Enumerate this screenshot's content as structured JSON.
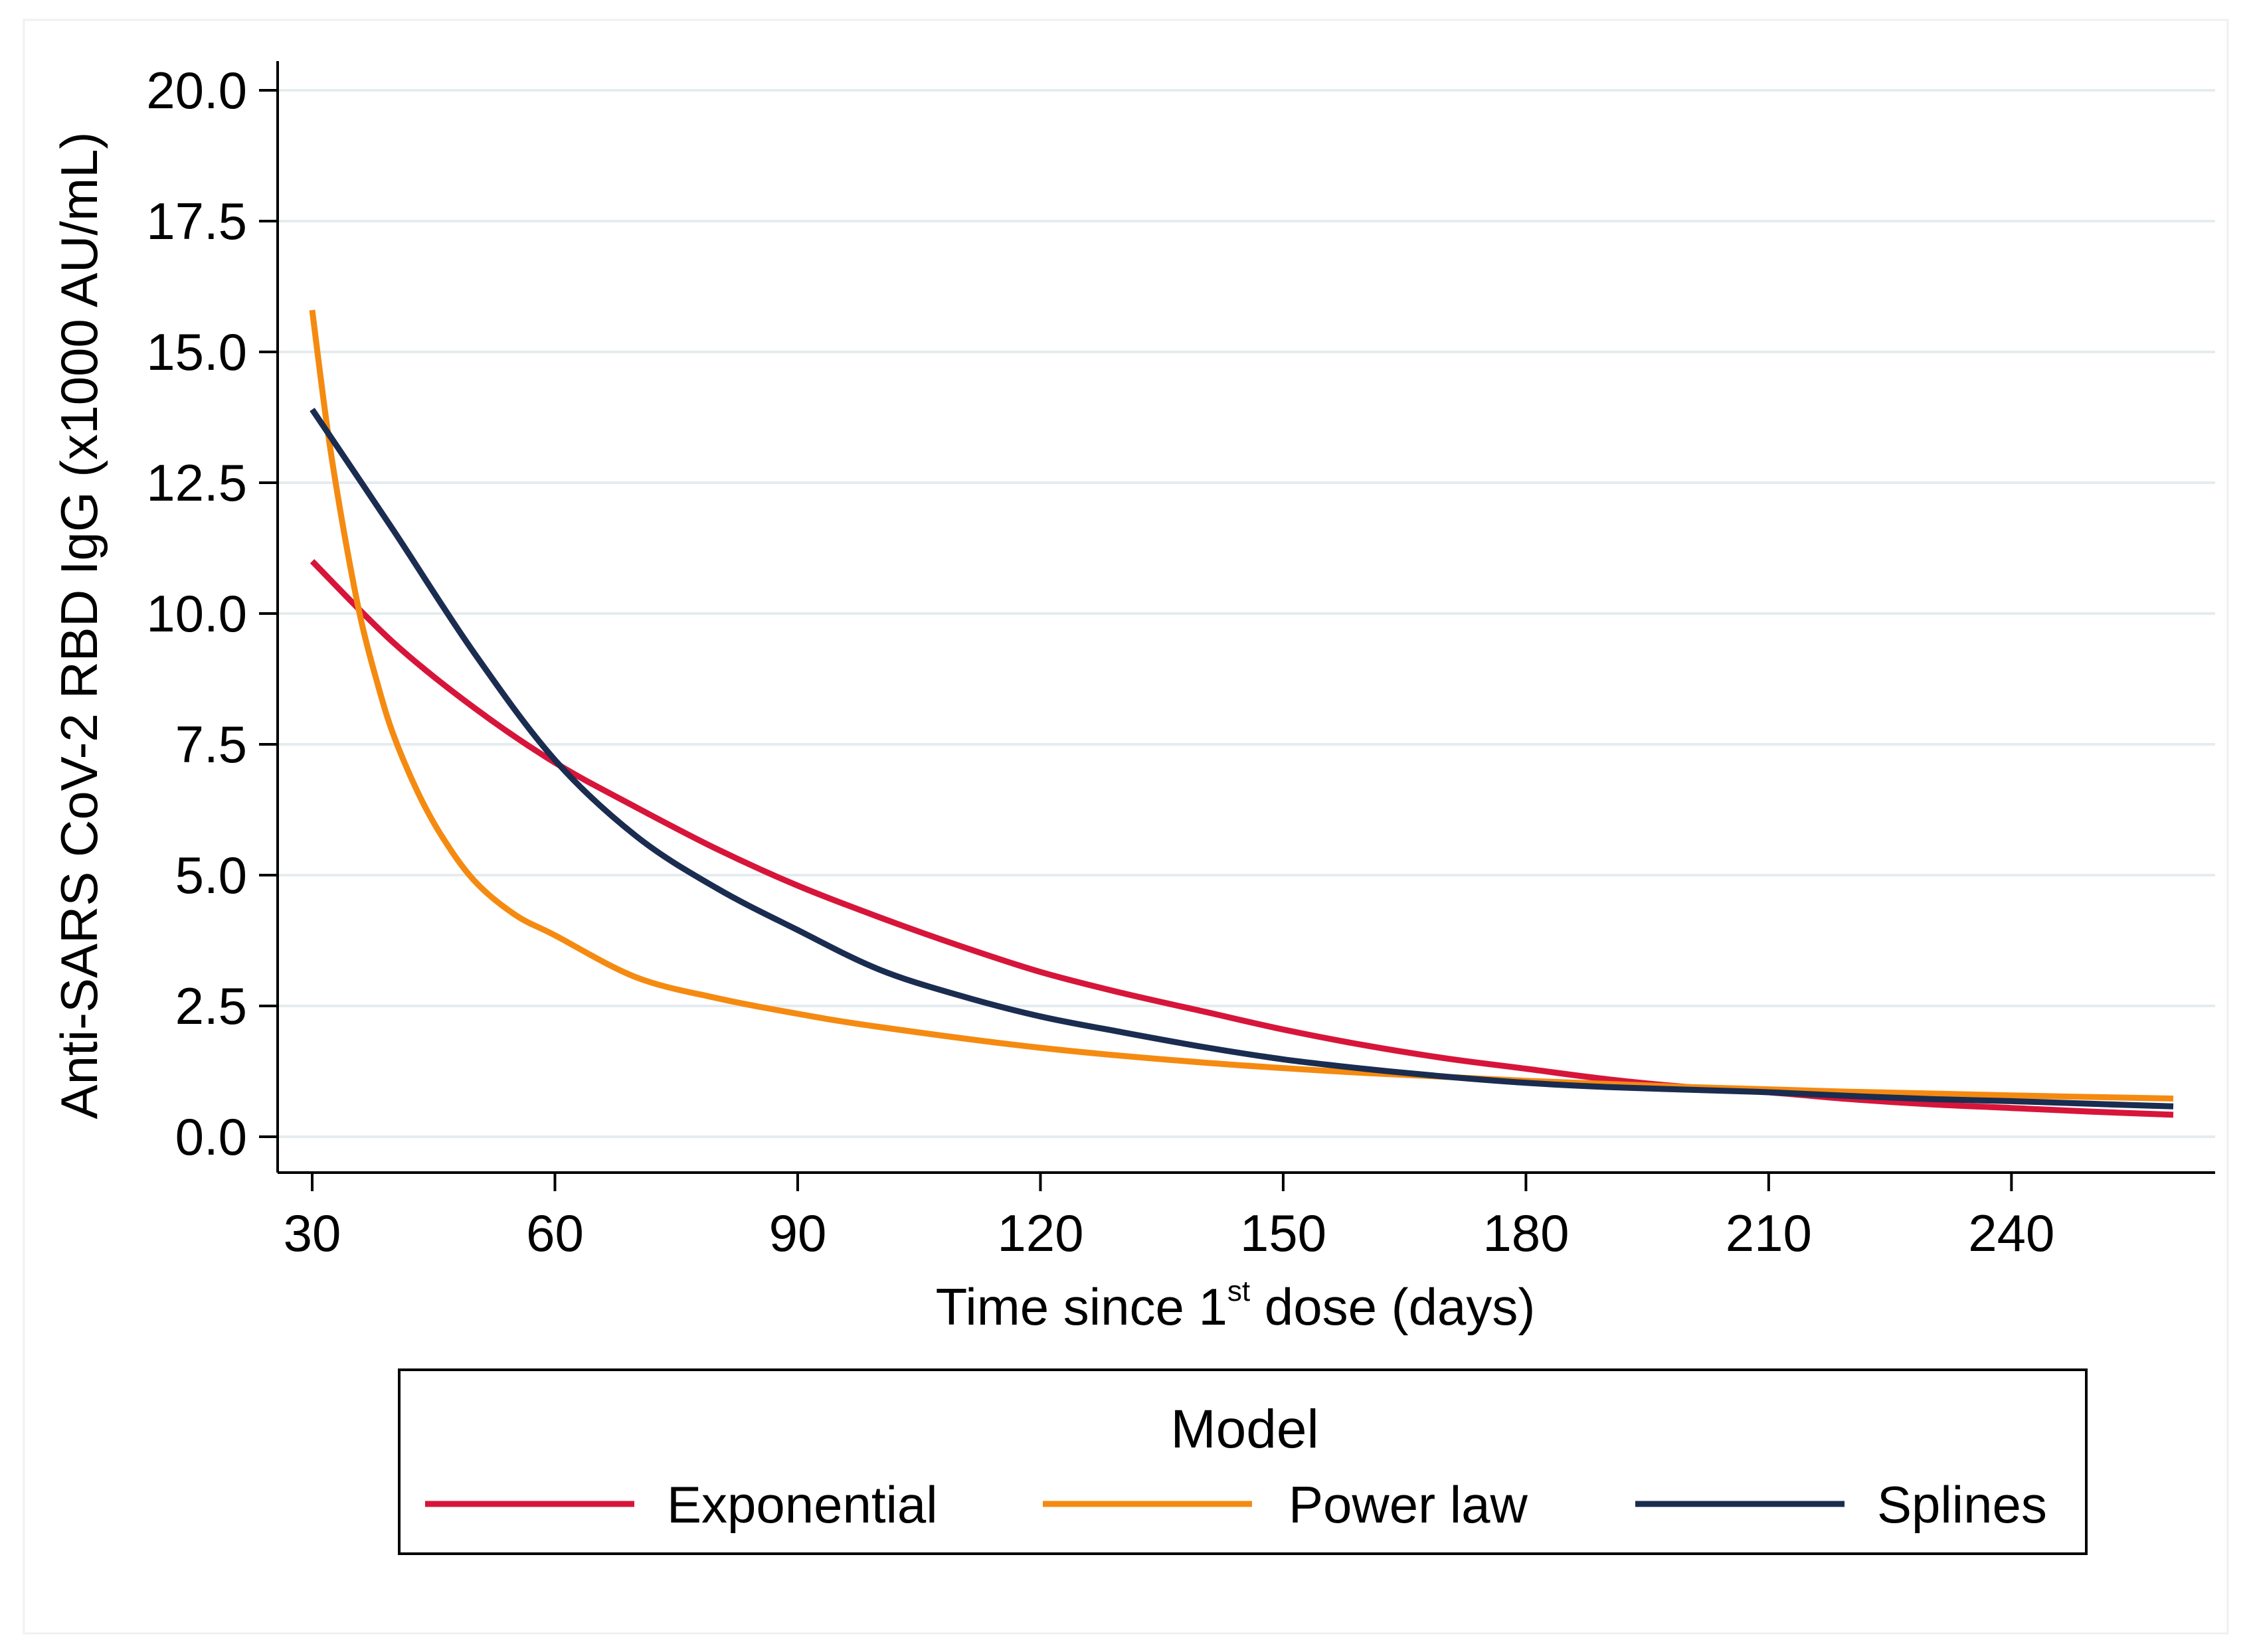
{
  "chart_data": {
    "type": "line",
    "title": "",
    "xlabel": {
      "prefix": "Time since 1",
      "superscript": "st",
      "suffix": " dose (days)"
    },
    "ylabel": "Anti-SARS CoV-2 RBD IgG (x1000 AU/mL)",
    "xlim": [
      30,
      260
    ],
    "ylim": [
      0,
      20
    ],
    "x_ticks": [
      30,
      60,
      90,
      120,
      150,
      180,
      210,
      240
    ],
    "x_tick_labels": [
      "30",
      "60",
      "90",
      "120",
      "150",
      "180",
      "210",
      "240"
    ],
    "y_ticks": [
      0,
      2.5,
      5,
      7.5,
      10,
      12.5,
      15,
      17.5,
      20
    ],
    "y_tick_labels": [
      "0.0",
      "2.5",
      "5.0",
      "7.5",
      "10.0",
      "12.5",
      "15.0",
      "17.5",
      "20.0"
    ],
    "grid": "horizontal",
    "legend": {
      "title": "Model",
      "placement": "bottom"
    },
    "series": [
      {
        "name": "Exponential",
        "color": "#d7153a",
        "x": [
          30,
          40,
          50,
          60,
          70,
          80,
          90,
          100,
          110,
          120,
          130,
          140,
          150,
          160,
          170,
          180,
          190,
          200,
          210,
          220,
          230,
          240,
          250,
          260
        ],
        "y": [
          11.0,
          9.45,
          8.2,
          7.15,
          6.3,
          5.5,
          4.8,
          4.2,
          3.65,
          3.15,
          2.75,
          2.4,
          2.05,
          1.75,
          1.5,
          1.3,
          1.1,
          0.95,
          0.85,
          0.72,
          0.62,
          0.55,
          0.48,
          0.42
        ]
      },
      {
        "name": "Power law",
        "color": "#f58a11",
        "x": [
          30,
          32,
          34,
          36,
          38,
          40,
          43,
          46,
          50,
          55,
          60,
          70,
          80,
          90,
          100,
          120,
          140,
          160,
          180,
          200,
          220,
          240,
          260
        ],
        "y": [
          15.8,
          13.4,
          11.5,
          9.9,
          8.7,
          7.7,
          6.6,
          5.75,
          4.9,
          4.25,
          3.85,
          3.05,
          2.65,
          2.35,
          2.1,
          1.7,
          1.42,
          1.22,
          1.07,
          0.95,
          0.86,
          0.79,
          0.73
        ]
      },
      {
        "name": "Splines",
        "color": "#1a2c50",
        "x": [
          30,
          40,
          50,
          60,
          70,
          80,
          90,
          100,
          110,
          120,
          130,
          140,
          150,
          160,
          170,
          180,
          190,
          200,
          210,
          220,
          230,
          240,
          250,
          260
        ],
        "y": [
          13.9,
          11.6,
          9.25,
          7.2,
          5.75,
          4.75,
          3.95,
          3.2,
          2.7,
          2.3,
          2.0,
          1.72,
          1.48,
          1.3,
          1.15,
          1.03,
          0.95,
          0.9,
          0.85,
          0.78,
          0.72,
          0.68,
          0.63,
          0.58
        ]
      }
    ]
  }
}
